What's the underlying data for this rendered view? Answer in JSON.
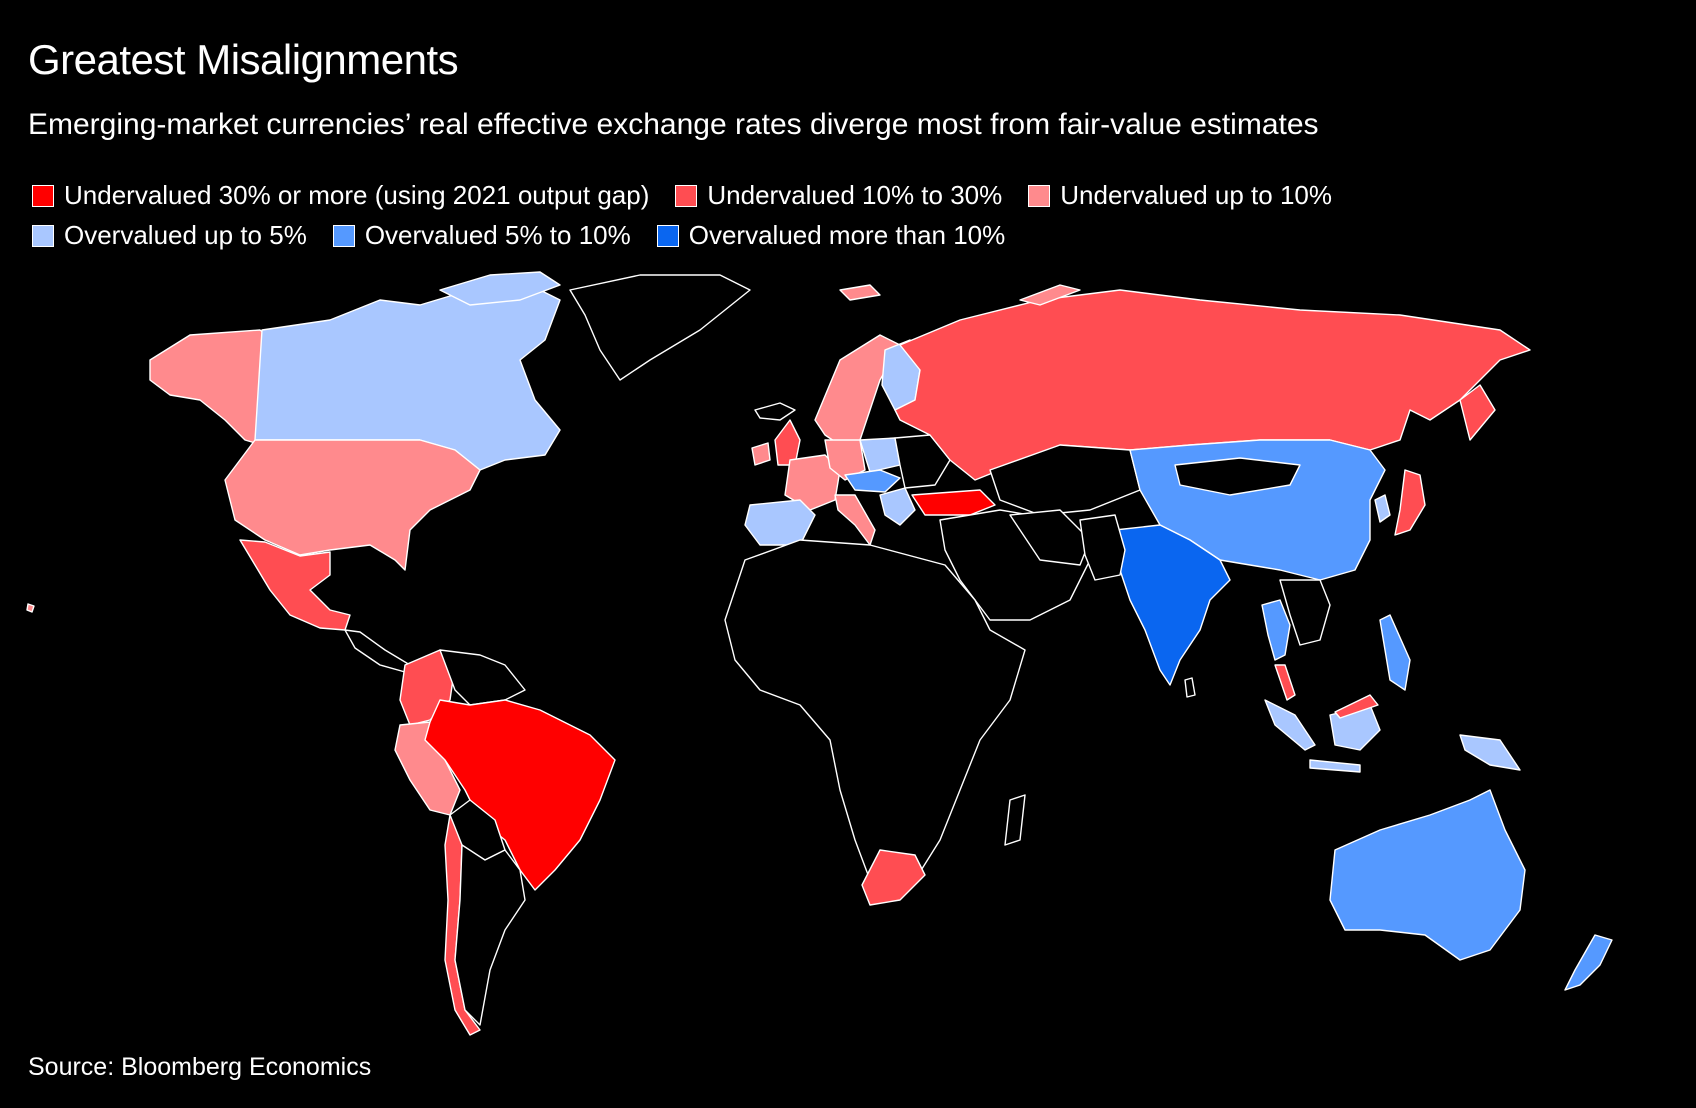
{
  "title": "Greatest Misalignments",
  "subtitle": "Emerging-market currencies’ real effective exchange rates diverge most from fair-value estimates",
  "legend": [
    {
      "label": "Undervalued 30% or more (using 2021 output gap)",
      "color": "#ff0000"
    },
    {
      "label": "Undervalued 10% to 30%",
      "color": "#ff4d52"
    },
    {
      "label": "Undervalued up to 10%",
      "color": "#ff8a8d"
    },
    {
      "label": "Overvalued up to 5%",
      "color": "#a9c7ff"
    },
    {
      "label": "Overvalued 5% to 10%",
      "color": "#5599ff"
    },
    {
      "label": "Overvalued more than 10%",
      "color": "#0a66f0"
    }
  ],
  "source": "Source: Bloomberg Economics"
}
